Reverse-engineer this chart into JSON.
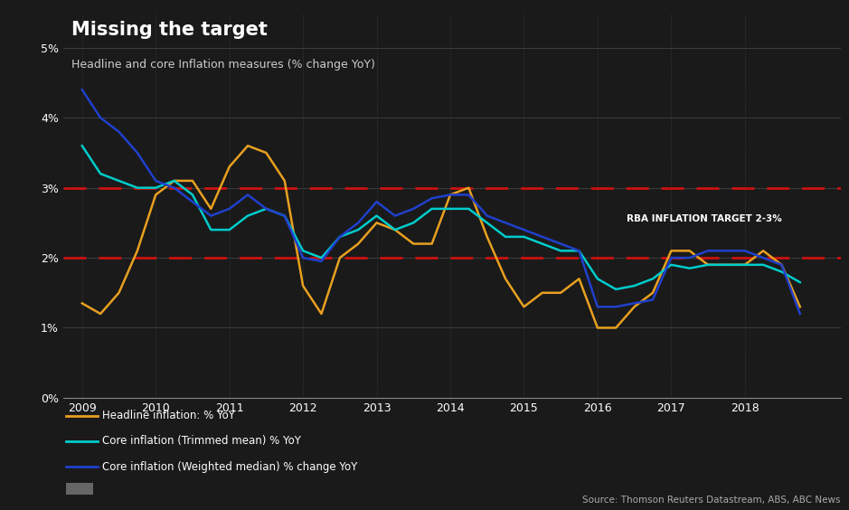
{
  "title": "Missing the target",
  "subtitle": "Headline and core Inflation measures (% change YoY)",
  "source": "Source: Thomson Reuters Datastream, ABS, ABC News",
  "rba_label": "RBA INFLATION TARGET 2-3%",
  "bg_color": "#1a1a1a",
  "target_color": "#cc1111",
  "headline_color": "#e8a020",
  "trimmed_color": "#00cccc",
  "weighted_color": "#2040cc",
  "headline_label": "Headline inflation: % YoY",
  "trimmed_label": "Core inflation (Trimmed mean) % YoY",
  "weighted_label": "Core inflation (Weighted median) % change YoY",
  "x_min": 2008.75,
  "x_max": 2019.3,
  "y_min": 0.0,
  "y_max": 5.5,
  "yticks": [
    0,
    1,
    2,
    3,
    4,
    5
  ],
  "ytick_labels": [
    "0%",
    "1%",
    "2%",
    "3%",
    "4%",
    "5%"
  ],
  "xtick_years": [
    2009,
    2010,
    2011,
    2012,
    2013,
    2014,
    2015,
    2016,
    2017,
    2018
  ],
  "headline_t": [
    2009.0,
    2009.25,
    2009.5,
    2009.75,
    2010.0,
    2010.25,
    2010.5,
    2010.75,
    2011.0,
    2011.25,
    2011.5,
    2011.75,
    2012.0,
    2012.25,
    2012.5,
    2012.75,
    2013.0,
    2013.25,
    2013.5,
    2013.75,
    2014.0,
    2014.25,
    2014.5,
    2014.75,
    2015.0,
    2015.25,
    2015.5,
    2015.75,
    2016.0,
    2016.25,
    2016.5,
    2016.75,
    2017.0,
    2017.25,
    2017.5,
    2017.75,
    2018.0,
    2018.25,
    2018.5,
    2018.75
  ],
  "headline_v": [
    1.35,
    1.2,
    1.5,
    2.1,
    2.9,
    3.1,
    3.1,
    2.7,
    3.3,
    3.6,
    3.5,
    3.1,
    1.6,
    1.2,
    2.0,
    2.2,
    2.5,
    2.4,
    2.2,
    2.2,
    2.9,
    3.0,
    2.3,
    1.7,
    1.3,
    1.5,
    1.5,
    1.7,
    1.0,
    1.0,
    1.3,
    1.5,
    2.1,
    2.1,
    1.9,
    1.9,
    1.9,
    2.1,
    1.9,
    1.3
  ],
  "trimmed_t": [
    2009.0,
    2009.25,
    2009.5,
    2009.75,
    2010.0,
    2010.25,
    2010.5,
    2010.75,
    2011.0,
    2011.25,
    2011.5,
    2011.75,
    2012.0,
    2012.25,
    2012.5,
    2012.75,
    2013.0,
    2013.25,
    2013.5,
    2013.75,
    2014.0,
    2014.25,
    2014.5,
    2014.75,
    2015.0,
    2015.25,
    2015.5,
    2015.75,
    2016.0,
    2016.25,
    2016.5,
    2016.75,
    2017.0,
    2017.25,
    2017.5,
    2017.75,
    2018.0,
    2018.25,
    2018.5,
    2018.75
  ],
  "trimmed_v": [
    3.6,
    3.2,
    3.1,
    3.0,
    3.0,
    3.1,
    2.9,
    2.4,
    2.4,
    2.6,
    2.7,
    2.6,
    2.1,
    2.0,
    2.3,
    2.4,
    2.6,
    2.4,
    2.5,
    2.7,
    2.7,
    2.7,
    2.5,
    2.3,
    2.3,
    2.2,
    2.1,
    2.1,
    1.7,
    1.55,
    1.6,
    1.7,
    1.9,
    1.85,
    1.9,
    1.9,
    1.9,
    1.9,
    1.8,
    1.65
  ],
  "weighted_t": [
    2009.0,
    2009.25,
    2009.5,
    2009.75,
    2010.0,
    2010.25,
    2010.5,
    2010.75,
    2011.0,
    2011.25,
    2011.5,
    2011.75,
    2012.0,
    2012.25,
    2012.5,
    2012.75,
    2013.0,
    2013.25,
    2013.5,
    2013.75,
    2014.0,
    2014.25,
    2014.5,
    2014.75,
    2015.0,
    2015.25,
    2015.5,
    2015.75,
    2016.0,
    2016.25,
    2016.5,
    2016.75,
    2017.0,
    2017.25,
    2017.5,
    2017.75,
    2018.0,
    2018.25,
    2018.5,
    2018.75
  ],
  "weighted_v": [
    4.4,
    4.0,
    3.8,
    3.5,
    3.1,
    3.0,
    2.8,
    2.6,
    2.7,
    2.9,
    2.7,
    2.6,
    2.0,
    1.95,
    2.3,
    2.5,
    2.8,
    2.6,
    2.7,
    2.85,
    2.9,
    2.9,
    2.6,
    2.5,
    2.4,
    2.3,
    2.2,
    2.1,
    1.3,
    1.3,
    1.35,
    1.4,
    2.0,
    2.0,
    2.1,
    2.1,
    2.1,
    2.0,
    1.9,
    1.2
  ]
}
